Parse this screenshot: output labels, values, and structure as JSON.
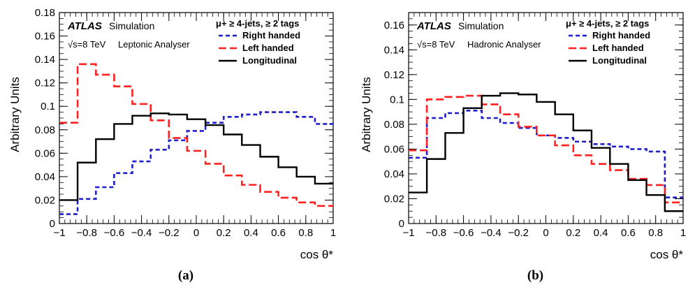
{
  "chart_data": [
    {
      "type": "line",
      "panel_label": "(a)",
      "ylabel": "Arbitrary Units",
      "xlabel": "cos θ*",
      "xlim": [
        -1,
        1
      ],
      "ylim": [
        0,
        0.18
      ],
      "xticks": [
        "−1",
        "−0.8",
        "−0.6",
        "−0.4",
        "−0.2",
        "0",
        "0.2",
        "0.4",
        "0.6",
        "0.8",
        "1"
      ],
      "yticks": [
        "0",
        "0.02",
        "0.04",
        "0.06",
        "0.08",
        "0.1",
        "0.12",
        "0.14",
        "0.16",
        "0.18"
      ],
      "atlas": "ATLAS",
      "sim_text": "Simulation",
      "energy_text": "√s=8 TeV",
      "analyser_text": "Leptonic Analyser",
      "selection_text": "μ+ ≥ 4-jets, ≥ 2 tags",
      "bin_edges": [
        -1,
        -0.867,
        -0.733,
        -0.6,
        -0.467,
        -0.333,
        -0.2,
        -0.067,
        0.067,
        0.2,
        0.333,
        0.467,
        0.6,
        0.733,
        0.867,
        1
      ],
      "series": [
        {
          "name": "Right handed",
          "color": "#1f1fcc",
          "dash": "6,4",
          "values": [
            0.008,
            0.021,
            0.031,
            0.043,
            0.053,
            0.063,
            0.071,
            0.079,
            0.086,
            0.091,
            0.093,
            0.095,
            0.095,
            0.091,
            0.085
          ]
        },
        {
          "name": "Left handed",
          "color": "#ff2020",
          "dash": "11,5",
          "values": [
            0.086,
            0.136,
            0.127,
            0.117,
            0.102,
            0.088,
            0.073,
            0.062,
            0.051,
            0.041,
            0.033,
            0.027,
            0.022,
            0.018,
            0.015
          ]
        },
        {
          "name": "Longitudinal",
          "color": "#000000",
          "dash": "",
          "values": [
            0.02,
            0.052,
            0.072,
            0.085,
            0.092,
            0.094,
            0.093,
            0.089,
            0.084,
            0.076,
            0.067,
            0.057,
            0.048,
            0.04,
            0.034
          ]
        }
      ]
    },
    {
      "type": "line",
      "panel_label": "(b)",
      "ylabel": "Arbitrary Units",
      "xlabel": "cos θ*",
      "xlim": [
        -1,
        1
      ],
      "ylim": [
        0,
        0.17
      ],
      "xticks": [
        "−1",
        "−0.8",
        "−0.6",
        "−0.4",
        "−0.2",
        "0",
        "0.2",
        "0.4",
        "0.6",
        "0.8",
        "1"
      ],
      "yticks": [
        "0",
        "0.02",
        "0.04",
        "0.06",
        "0.08",
        "0.1",
        "0.12",
        "0.14",
        "0.16"
      ],
      "atlas": "ATLAS",
      "sim_text": "Simulation",
      "energy_text": "√s=8 TeV",
      "analyser_text": "Hadronic Analyser",
      "selection_text": "μ+ ≥ 4-jets, ≥ 2 tags",
      "bin_edges": [
        -1,
        -0.867,
        -0.733,
        -0.6,
        -0.467,
        -0.333,
        -0.2,
        -0.067,
        0.067,
        0.2,
        0.333,
        0.467,
        0.6,
        0.733,
        0.867,
        1
      ],
      "series": [
        {
          "name": "Right handed",
          "color": "#1f1fcc",
          "dash": "6,4",
          "values": [
            0.053,
            0.085,
            0.089,
            0.091,
            0.085,
            0.081,
            0.077,
            0.071,
            0.069,
            0.066,
            0.064,
            0.062,
            0.06,
            0.058,
            0.021
          ]
        },
        {
          "name": "Left handed",
          "color": "#ff2020",
          "dash": "11,5",
          "values": [
            0.059,
            0.1,
            0.102,
            0.103,
            0.096,
            0.088,
            0.078,
            0.071,
            0.063,
            0.055,
            0.048,
            0.043,
            0.036,
            0.031,
            0.017
          ]
        },
        {
          "name": "Longitudinal",
          "color": "#000000",
          "dash": "",
          "values": [
            0.025,
            0.052,
            0.073,
            0.093,
            0.103,
            0.105,
            0.104,
            0.098,
            0.088,
            0.075,
            0.061,
            0.048,
            0.035,
            0.023,
            0.01
          ]
        }
      ]
    }
  ]
}
